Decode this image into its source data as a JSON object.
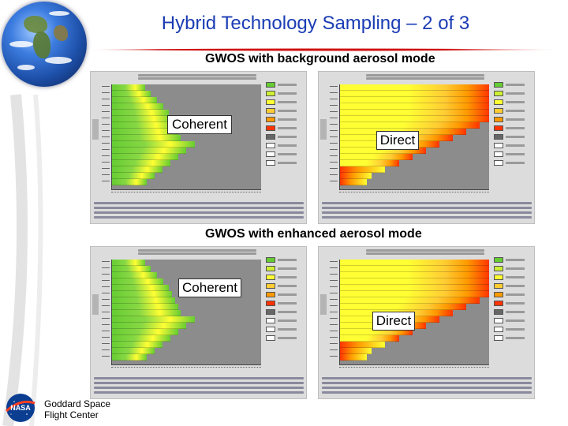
{
  "slide": {
    "title": "Hybrid Technology Sampling – 2 of 3"
  },
  "sections": [
    {
      "heading": "GWOS with background aerosol mode"
    },
    {
      "heading": "GWOS with enhanced aerosol mode"
    }
  ],
  "panels": [
    {
      "label": "Coherent",
      "mode": "coherent"
    },
    {
      "label": "Direct",
      "mode": "direct"
    },
    {
      "label": "Coherent",
      "mode": "coherent"
    },
    {
      "label": "Direct",
      "mode": "direct"
    }
  ],
  "legend_colors": [
    "#66cc33",
    "#ccee33",
    "#ffff33",
    "#ffcc33",
    "#ff9900",
    "#ff3300",
    "#666666",
    "#ffffff",
    "#ffffff",
    "#ffffff"
  ],
  "footer": {
    "org_line1": "Goddard Space",
    "org_line2": "Flight Center",
    "logo_text": "NASA"
  },
  "colors": {
    "title": "#1a3cb4",
    "rule_red": "#d01010",
    "accent_yellow": "#ffff33",
    "accent_green": "#66cc33",
    "accent_red": "#ff3300"
  }
}
